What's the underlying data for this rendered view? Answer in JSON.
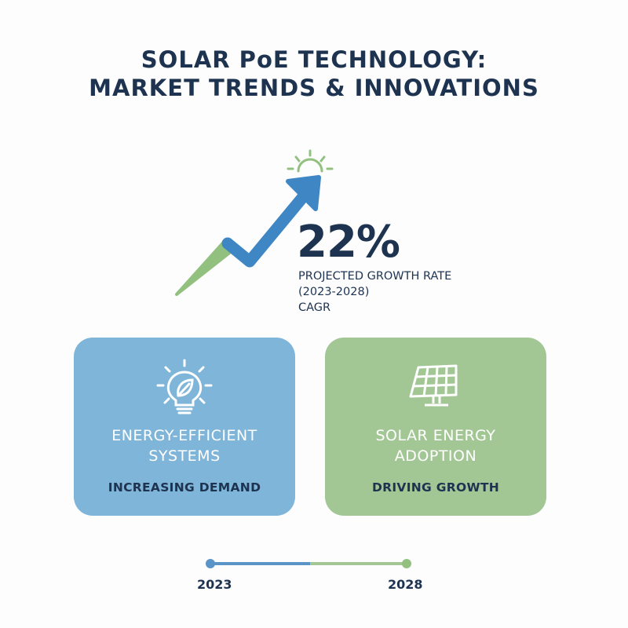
{
  "title": {
    "line1": "SOLAR PoE TECHNOLOGY:",
    "line2": "MARKET TRENDS & INNOVATIONS"
  },
  "growth": {
    "value": "22%",
    "label_line1": "PROJECTED GROWTH RATE",
    "label_line2": "(2023-2028)",
    "label_line3": "CAGR",
    "icons": [
      "trend-arrow-icon",
      "sun-icon"
    ]
  },
  "cards": [
    {
      "icon": "lightbulb-leaf-icon",
      "title_line1": "ENERGY-EFFICIENT",
      "title_line2": "SYSTEMS",
      "subtitle": "INCREASING DEMAND",
      "color": "#7fb5d9"
    },
    {
      "icon": "solar-panel-icon",
      "title_line1": "SOLAR ENERGY",
      "title_line2": "ADOPTION",
      "subtitle": "DRIVING GROWTH",
      "color": "#a2c795"
    }
  ],
  "timeline": {
    "start": "2023",
    "end": "2028"
  },
  "colors": {
    "navy": "#1d3350",
    "blue": "#3f86c4",
    "green": "#92c17f"
  }
}
